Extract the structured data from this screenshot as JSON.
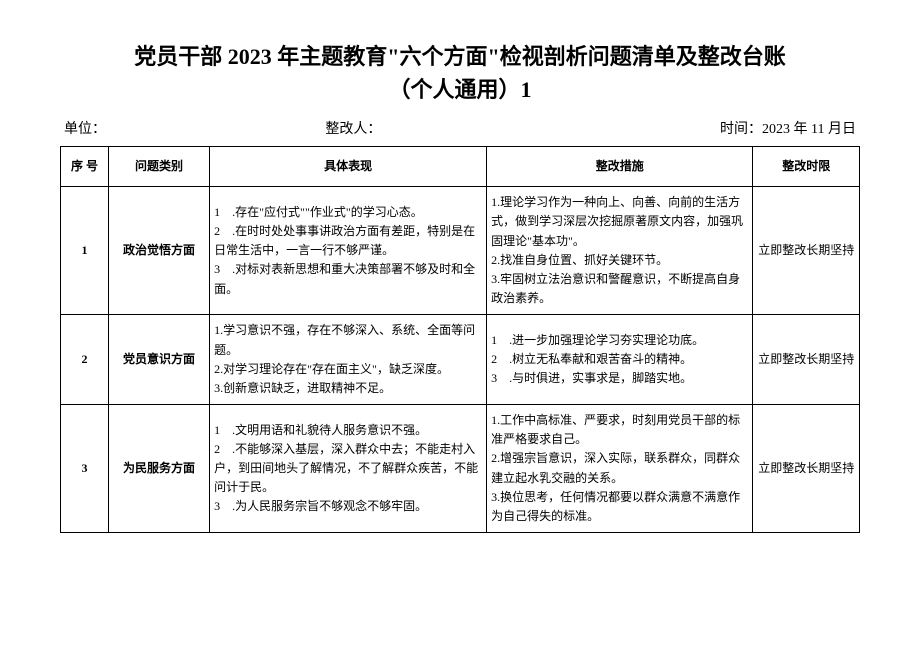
{
  "title_line1": "党员干部 2023 年主题教育\"六个方面\"检视剖析问题清单及整改台账",
  "title_line2": "（个人通用）1",
  "meta": {
    "unit_label": "单位：",
    "person_label": "整改人：",
    "date_label": "时间：2023 年 11 月日"
  },
  "table": {
    "headers": {
      "seq": "序 号",
      "category": "问题类别",
      "performance": "具体表现",
      "measure": "整改措施",
      "deadline": "整改时限"
    },
    "rows": [
      {
        "seq": "1",
        "category": "政治觉悟方面",
        "performance": "1　.存在\"应付式\"\"作业式\"的学习心态。\n2　.在时时处处事事讲政治方面有差距，特别是在日常生活中，一言一行不够严谨。\n3　.对标对表新思想和重大决策部署不够及时和全面。",
        "measure": "1.理论学习作为一种向上、向善、向前的生活方式，做到学习深层次挖掘原著原文内容，加强巩固理论\"基本功\"。\n2.找准自身位置、抓好关键环节。\n3.牢固树立法治意识和警醒意识，不断提高自身政治素养。",
        "deadline": "立即整改长期坚持"
      },
      {
        "seq": "2",
        "category": "党员意识方面",
        "performance": "1.学习意识不强，存在不够深入、系统、全面等问题。\n2.对学习理论存在\"存在面主义\"，缺乏深度。\n3.创新意识缺乏，进取精神不足。",
        "measure": "1　.进一步加强理论学习夯实理论功底。\n2　.树立无私奉献和艰苦奋斗的精神。\n3　.与时俱进，实事求是，脚踏实地。",
        "deadline": "立即整改长期坚持"
      },
      {
        "seq": "3",
        "category": "为民服务方面",
        "performance": "1　.文明用语和礼貌待人服务意识不强。\n2　.不能够深入基层，深入群众中去；不能走村入户，到田间地头了解情况，不了解群众疾苦，不能问计于民。\n3　.为人民服务宗旨不够观念不够牢固。",
        "measure": "1.工作中高标准、严要求，时刻用党员干部的标准严格要求自己。\n2.增强宗旨意识，深入实际，联系群众，同群众建立起水乳交融的关系。\n3.换位思考，任何情况都要以群众满意不满意作为自己得失的标准。",
        "deadline": "立即整改长期坚持"
      }
    ]
  }
}
